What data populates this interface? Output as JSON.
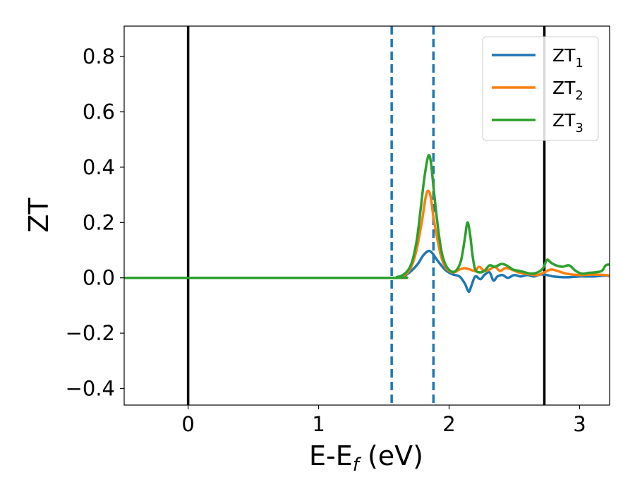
{
  "chart_data": {
    "type": "line",
    "xlabel": {
      "base": "E-E",
      "sub": "f",
      "rest": " (eV)"
    },
    "ylabel": "ZT",
    "xlim": [
      -0.49,
      3.23
    ],
    "ylim": [
      -0.46,
      0.91
    ],
    "xticks": [
      {
        "value": 0,
        "label": "0"
      },
      {
        "value": 1,
        "label": "1"
      },
      {
        "value": 2,
        "label": "2"
      },
      {
        "value": 3,
        "label": "3"
      }
    ],
    "yticks": [
      {
        "value": -0.4,
        "label": "−0.4"
      },
      {
        "value": -0.2,
        "label": "−0.2"
      },
      {
        "value": 0.0,
        "label": "0.0"
      },
      {
        "value": 0.2,
        "label": "0.2"
      },
      {
        "value": 0.4,
        "label": "0.4"
      },
      {
        "value": 0.6,
        "label": "0.6"
      },
      {
        "value": 0.8,
        "label": "0.8"
      }
    ],
    "grid": false,
    "legend_position": "top-right",
    "vlines": [
      {
        "x": 0.0,
        "style": "solid",
        "color": "#000000"
      },
      {
        "x": 2.73,
        "style": "solid",
        "color": "#000000"
      },
      {
        "x": 1.56,
        "style": "dashed",
        "color": "#1f77b4"
      },
      {
        "x": 1.88,
        "style": "dashed",
        "color": "#1f77b4"
      }
    ],
    "series": [
      {
        "name": "ZT",
        "sub": "1",
        "color": "#1f77b4",
        "points": [
          [
            -0.49,
            0
          ],
          [
            1.5,
            0
          ],
          [
            1.6,
            0.002
          ],
          [
            1.66,
            0.008
          ],
          [
            1.71,
            0.025
          ],
          [
            1.76,
            0.05
          ],
          [
            1.8,
            0.08
          ],
          [
            1.84,
            0.097
          ],
          [
            1.87,
            0.09
          ],
          [
            1.9,
            0.07
          ],
          [
            1.94,
            0.045
          ],
          [
            1.98,
            0.025
          ],
          [
            2.03,
            0.012
          ],
          [
            2.08,
            0.005
          ],
          [
            2.12,
            -0.02
          ],
          [
            2.15,
            -0.05
          ],
          [
            2.17,
            -0.03
          ],
          [
            2.2,
            0.005
          ],
          [
            2.24,
            -0.005
          ],
          [
            2.27,
            0.01
          ],
          [
            2.31,
            0.02
          ],
          [
            2.34,
            -0.01
          ],
          [
            2.37,
            0.005
          ],
          [
            2.41,
            0.01
          ],
          [
            2.45,
            0
          ],
          [
            2.5,
            0.01
          ],
          [
            2.55,
            0.005
          ],
          [
            2.6,
            0.01
          ],
          [
            2.65,
            0.005
          ],
          [
            2.7,
            0.012
          ],
          [
            2.75,
            0.01
          ],
          [
            2.8,
            0.005
          ],
          [
            2.9,
            0.002
          ],
          [
            3.0,
            0.005
          ],
          [
            3.1,
            0.005
          ],
          [
            3.2,
            0.008
          ],
          [
            3.23,
            0.005
          ]
        ]
      },
      {
        "name": "ZT",
        "sub": "2",
        "color": "#ff7f0e",
        "points": [
          [
            -0.49,
            0
          ],
          [
            1.5,
            0
          ],
          [
            1.6,
            0.002
          ],
          [
            1.66,
            0.01
          ],
          [
            1.71,
            0.04
          ],
          [
            1.75,
            0.1
          ],
          [
            1.79,
            0.2
          ],
          [
            1.82,
            0.29
          ],
          [
            1.84,
            0.315
          ],
          [
            1.86,
            0.29
          ],
          [
            1.88,
            0.22
          ],
          [
            1.91,
            0.14
          ],
          [
            1.94,
            0.075
          ],
          [
            1.97,
            0.04
          ],
          [
            2.0,
            0.025
          ],
          [
            2.04,
            0.02
          ],
          [
            2.08,
            0.03
          ],
          [
            2.12,
            0.035
          ],
          [
            2.16,
            0.03
          ],
          [
            2.2,
            0.025
          ],
          [
            2.23,
            0.04
          ],
          [
            2.27,
            0.025
          ],
          [
            2.31,
            0.03
          ],
          [
            2.35,
            0.04
          ],
          [
            2.39,
            0.025
          ],
          [
            2.43,
            0.035
          ],
          [
            2.48,
            0.03
          ],
          [
            2.53,
            0.02
          ],
          [
            2.58,
            0.015
          ],
          [
            2.63,
            0.012
          ],
          [
            2.68,
            0.01
          ],
          [
            2.73,
            0.02
          ],
          [
            2.78,
            0.03
          ],
          [
            2.83,
            0.025
          ],
          [
            2.9,
            0.015
          ],
          [
            3.0,
            0.01
          ],
          [
            3.1,
            0.012
          ],
          [
            3.2,
            0.01
          ],
          [
            3.23,
            0.008
          ]
        ]
      },
      {
        "name": "ZT",
        "sub": "3",
        "color": "#2ca02c",
        "points": [
          [
            -0.49,
            0
          ],
          [
            1.5,
            0
          ],
          [
            1.6,
            0.003
          ],
          [
            1.66,
            0.015
          ],
          [
            1.71,
            0.05
          ],
          [
            1.75,
            0.13
          ],
          [
            1.78,
            0.24
          ],
          [
            1.81,
            0.36
          ],
          [
            1.84,
            0.44
          ],
          [
            1.86,
            0.42
          ],
          [
            1.88,
            0.33
          ],
          [
            1.91,
            0.2
          ],
          [
            1.94,
            0.1
          ],
          [
            1.97,
            0.05
          ],
          [
            2.01,
            0.025
          ],
          [
            2.05,
            0.025
          ],
          [
            2.09,
            0.06
          ],
          [
            2.12,
            0.14
          ],
          [
            2.14,
            0.2
          ],
          [
            2.16,
            0.16
          ],
          [
            2.18,
            0.08
          ],
          [
            2.2,
            0.03
          ],
          [
            2.23,
            0.02
          ],
          [
            2.27,
            0.025
          ],
          [
            2.31,
            0.045
          ],
          [
            2.35,
            0.04
          ],
          [
            2.4,
            0.05
          ],
          [
            2.44,
            0.045
          ],
          [
            2.49,
            0.03
          ],
          [
            2.54,
            0.025
          ],
          [
            2.58,
            0.02
          ],
          [
            2.63,
            0.015
          ],
          [
            2.68,
            0.02
          ],
          [
            2.72,
            0.035
          ],
          [
            2.75,
            0.065
          ],
          [
            2.78,
            0.055
          ],
          [
            2.82,
            0.045
          ],
          [
            2.87,
            0.04
          ],
          [
            2.92,
            0.045
          ],
          [
            2.97,
            0.025
          ],
          [
            3.02,
            0.015
          ],
          [
            3.07,
            0.018
          ],
          [
            3.12,
            0.02
          ],
          [
            3.17,
            0.025
          ],
          [
            3.2,
            0.045
          ],
          [
            3.23,
            0.048
          ]
        ]
      }
    ]
  }
}
